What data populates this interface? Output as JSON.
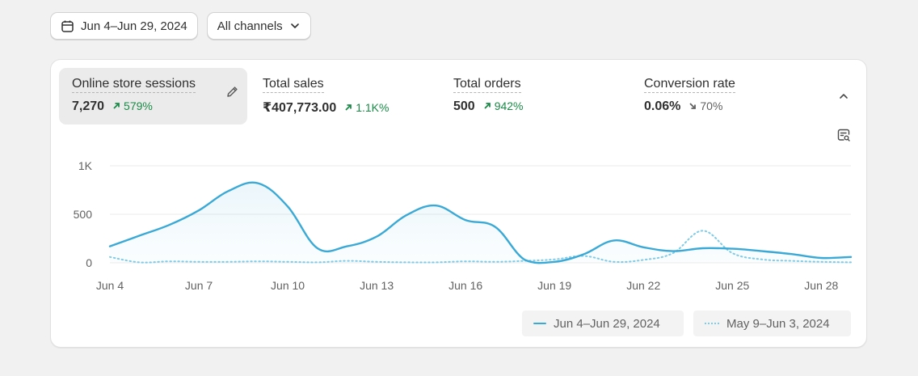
{
  "toolbar": {
    "date_range": "Jun 4–Jun 29, 2024",
    "channel": "All channels"
  },
  "metrics": [
    {
      "label": "Online store sessions",
      "value": "7,270",
      "delta": "579%",
      "trend": "up"
    },
    {
      "label": "Total sales",
      "value": "₹407,773.00",
      "delta": "1.1K%",
      "trend": "up"
    },
    {
      "label": "Total orders",
      "value": "500",
      "delta": "942%",
      "trend": "up"
    },
    {
      "label": "Conversion rate",
      "value": "0.06%",
      "delta": "70%",
      "trend": "down"
    }
  ],
  "icons": {
    "calendar": "calendar-icon",
    "chevron": "chevron-down-icon",
    "edit": "pencil-icon",
    "collapse": "chevron-up-icon",
    "insights": "report-search-icon"
  },
  "colors": {
    "current": "#3aa9d6",
    "previous": "#7fcbe8",
    "up": "#1a8a47",
    "down": "#616161"
  },
  "legend": {
    "current": "Jun 4–Jun 29, 2024",
    "previous": "May 9–Jun 3, 2024"
  },
  "chart_data": {
    "type": "area",
    "y_ticks": [
      "1K",
      "500",
      "0"
    ],
    "ylim": [
      0,
      1000
    ],
    "x_tick_labels": [
      "Jun 4",
      "Jun 7",
      "Jun 10",
      "Jun 13",
      "Jun 16",
      "Jun 19",
      "Jun 22",
      "Jun 25",
      "Jun 28"
    ],
    "x_tick_index": [
      0,
      3,
      6,
      9,
      12,
      15,
      18,
      21,
      24
    ],
    "grid": true,
    "legend_position": "bottom-right",
    "series": [
      {
        "name": "Jun 4–Jun 29, 2024",
        "style": "solid-area",
        "values": [
          170,
          280,
          390,
          540,
          740,
          820,
          580,
          150,
          170,
          270,
          490,
          590,
          440,
          370,
          30,
          10,
          90,
          230,
          160,
          120,
          150,
          145,
          120,
          90,
          50,
          60
        ]
      },
      {
        "name": "May 9–Jun 3, 2024",
        "style": "dotted",
        "values": [
          60,
          5,
          15,
          10,
          10,
          15,
          10,
          5,
          20,
          10,
          5,
          5,
          15,
          10,
          20,
          35,
          70,
          10,
          30,
          100,
          330,
          100,
          35,
          20,
          10,
          5
        ]
      }
    ]
  }
}
